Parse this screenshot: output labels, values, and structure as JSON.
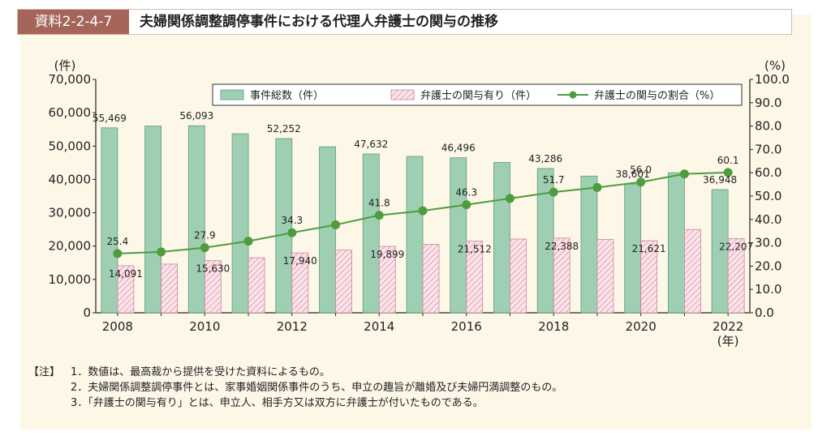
{
  "header": {
    "tag": "資料2-2-4-7",
    "title": "夫婦関係調整調停事件における代理人弁護士の関与の推移"
  },
  "chart_data": {
    "type": "bar",
    "x": [
      "2008",
      "2009",
      "2010",
      "2011",
      "2012",
      "2013",
      "2014",
      "2015",
      "2016",
      "2017",
      "2018",
      "2019",
      "2020",
      "2021",
      "2022"
    ],
    "x_tick_labels": [
      "2008",
      "2010",
      "2012",
      "2014",
      "2016",
      "2018",
      "2020",
      "2022"
    ],
    "x_unit": "(年)",
    "y_left_unit": "(件)",
    "y_right_unit": "(%)",
    "y_left_ticks": [
      "0",
      "10,000",
      "20,000",
      "30,000",
      "40,000",
      "50,000",
      "60,000",
      "70,000"
    ],
    "y_right_ticks": [
      "0.0",
      "10.0",
      "20.0",
      "30.0",
      "40.0",
      "50.0",
      "60.0",
      "70.0",
      "80.0",
      "90.0",
      "100.0"
    ],
    "ylim_left": [
      0,
      70000
    ],
    "ylim_right": [
      0,
      100
    ],
    "legend_position": "top-right",
    "colors": {
      "total": "#9fcfb3",
      "total_edge": "#5e9a79",
      "lawyer": "#f6d4dc",
      "lawyer_edge": "#c9869a",
      "rate": "#4e9c3e"
    },
    "series": [
      {
        "name": "事件総数（件）",
        "kind": "bar",
        "axis": "left",
        "values": [
          55469,
          56000,
          56093,
          53700,
          52252,
          49800,
          47632,
          46900,
          46496,
          45100,
          43286,
          41000,
          38601,
          42000,
          36948
        ],
        "labels": [
          "55,469",
          null,
          "56,093",
          null,
          "52,252",
          null,
          "47,632",
          null,
          "46,496",
          null,
          "43,286",
          null,
          "38,601",
          null,
          "36,948"
        ]
      },
      {
        "name": "弁護士の関与有り（件）",
        "kind": "bar",
        "axis": "left",
        "values": [
          14091,
          14600,
          15630,
          16500,
          17940,
          18800,
          19899,
          20500,
          21512,
          22100,
          22388,
          22000,
          21621,
          25000,
          22207
        ],
        "labels": [
          "14,091",
          null,
          "15,630",
          null,
          "17,940",
          null,
          "19,899",
          null,
          "21,512",
          null,
          "22,388",
          null,
          "21,621",
          null,
          "22,207"
        ]
      },
      {
        "name": "弁護士の関与の割合（%）",
        "kind": "line",
        "axis": "right",
        "values": [
          25.4,
          26.1,
          27.9,
          30.7,
          34.3,
          37.7,
          41.8,
          43.7,
          46.3,
          49.0,
          51.7,
          53.7,
          56.0,
          59.5,
          60.1
        ],
        "labels": [
          "25.4",
          null,
          "27.9",
          null,
          "34.3",
          null,
          "41.8",
          null,
          "46.3",
          null,
          "51.7",
          null,
          "56.0",
          null,
          "60.1"
        ]
      }
    ]
  },
  "notes": {
    "head": "【注】",
    "items": [
      "1．数値は、最高裁から提供を受けた資料によるもの。",
      "2．夫婦関係調整調停事件とは、家事婚姻関係事件のうち、申立の趣旨が離婚及び夫婦円満調整のもの。",
      "3．「弁護士の関与有り」とは、申立人、相手方又は双方に弁護士が付いたものである。"
    ]
  }
}
